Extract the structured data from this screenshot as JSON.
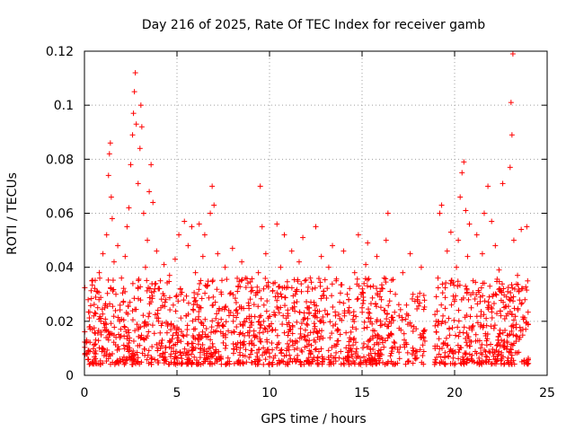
{
  "chart_data": {
    "type": "scatter",
    "title": "Day 216 of 2025, Rate Of TEC Index for receiver gamb",
    "xlabel": "GPS time / hours",
    "ylabel": "ROTI / TECUs",
    "xlim": [
      0,
      25
    ],
    "ylim": [
      0,
      0.12
    ],
    "x_ticks": [
      0,
      5,
      10,
      15,
      20,
      25
    ],
    "x_tick_labels": [
      "0",
      "5",
      "10",
      "15",
      "20",
      "25"
    ],
    "y_ticks": [
      0,
      0.02,
      0.04,
      0.06,
      0.08,
      0.1,
      0.12
    ],
    "y_tick_labels": [
      "0",
      "0.02",
      "0.04",
      "0.06",
      "0.08",
      "0.1",
      "0.12"
    ],
    "grid": true,
    "marker": "+",
    "series_color": "#ff0000",
    "series": [
      {
        "name": "ROTI",
        "points": [
          [
            0.1,
            0.012
          ],
          [
            0.2,
            0.028
          ],
          [
            0.3,
            0.018
          ],
          [
            0.4,
            0.035
          ],
          [
            0.5,
            0.022
          ],
          [
            0.6,
            0.009
          ],
          [
            0.7,
            0.031
          ],
          [
            0.8,
            0.038
          ],
          [
            0.9,
            0.015
          ],
          [
            1.0,
            0.045
          ],
          [
            1.1,
            0.025
          ],
          [
            1.2,
            0.052
          ],
          [
            1.3,
            0.074
          ],
          [
            1.35,
            0.082
          ],
          [
            1.4,
            0.086
          ],
          [
            1.45,
            0.066
          ],
          [
            1.5,
            0.058
          ],
          [
            1.6,
            0.042
          ],
          [
            1.7,
            0.03
          ],
          [
            1.8,
            0.048
          ],
          [
            1.9,
            0.02
          ],
          [
            2.0,
            0.036
          ],
          [
            2.1,
            0.027
          ],
          [
            2.2,
            0.044
          ],
          [
            2.3,
            0.055
          ],
          [
            2.4,
            0.062
          ],
          [
            2.5,
            0.078
          ],
          [
            2.6,
            0.089
          ],
          [
            2.65,
            0.097
          ],
          [
            2.7,
            0.105
          ],
          [
            2.75,
            0.112
          ],
          [
            2.8,
            0.093
          ],
          [
            2.9,
            0.071
          ],
          [
            3.0,
            0.084
          ],
          [
            3.05,
            0.1
          ],
          [
            3.1,
            0.092
          ],
          [
            3.2,
            0.06
          ],
          [
            3.3,
            0.04
          ],
          [
            3.4,
            0.05
          ],
          [
            3.5,
            0.068
          ],
          [
            3.6,
            0.078
          ],
          [
            3.7,
            0.064
          ],
          [
            3.8,
            0.032
          ],
          [
            3.9,
            0.046
          ],
          [
            4.0,
            0.02
          ],
          [
            4.1,
            0.035
          ],
          [
            4.2,
            0.013
          ],
          [
            4.3,
            0.041
          ],
          [
            4.4,
            0.028
          ],
          [
            4.5,
            0.019
          ],
          [
            4.6,
            0.037
          ],
          [
            4.7,
            0.01
          ],
          [
            4.8,
            0.026
          ],
          [
            4.9,
            0.043
          ],
          [
            5.0,
            0.017
          ],
          [
            5.1,
            0.052
          ],
          [
            5.2,
            0.03
          ],
          [
            5.4,
            0.057
          ],
          [
            5.5,
            0.022
          ],
          [
            5.6,
            0.048
          ],
          [
            5.8,
            0.055
          ],
          [
            5.9,
            0.014
          ],
          [
            6.0,
            0.038
          ],
          [
            6.2,
            0.056
          ],
          [
            6.3,
            0.025
          ],
          [
            6.4,
            0.044
          ],
          [
            6.5,
            0.052
          ],
          [
            6.6,
            0.033
          ],
          [
            6.8,
            0.06
          ],
          [
            6.9,
            0.07
          ],
          [
            7.0,
            0.063
          ],
          [
            7.1,
            0.021
          ],
          [
            7.2,
            0.045
          ],
          [
            7.4,
            0.03
          ],
          [
            7.5,
            0.012
          ],
          [
            7.6,
            0.04
          ],
          [
            7.8,
            0.024
          ],
          [
            8.0,
            0.047
          ],
          [
            8.1,
            0.016
          ],
          [
            8.3,
            0.033
          ],
          [
            8.5,
            0.042
          ],
          [
            8.6,
            0.011
          ],
          [
            8.7,
            0.036
          ],
          [
            8.9,
            0.021
          ],
          [
            9.0,
            0.031
          ],
          [
            9.2,
            0.014
          ],
          [
            9.4,
            0.038
          ],
          [
            9.5,
            0.07
          ],
          [
            9.6,
            0.055
          ],
          [
            9.7,
            0.026
          ],
          [
            9.8,
            0.045
          ],
          [
            10.0,
            0.018
          ],
          [
            10.2,
            0.034
          ],
          [
            10.4,
            0.056
          ],
          [
            10.5,
            0.012
          ],
          [
            10.6,
            0.04
          ],
          [
            10.8,
            0.052
          ],
          [
            11.0,
            0.022
          ],
          [
            11.2,
            0.046
          ],
          [
            11.4,
            0.03
          ],
          [
            11.5,
            0.01
          ],
          [
            11.6,
            0.042
          ],
          [
            11.8,
            0.051
          ],
          [
            12.0,
            0.019
          ],
          [
            12.2,
            0.036
          ],
          [
            12.4,
            0.027
          ],
          [
            12.5,
            0.055
          ],
          [
            12.6,
            0.014
          ],
          [
            12.8,
            0.044
          ],
          [
            13.0,
            0.024
          ],
          [
            13.2,
            0.04
          ],
          [
            13.4,
            0.048
          ],
          [
            13.5,
            0.011
          ],
          [
            13.6,
            0.035
          ],
          [
            13.8,
            0.021
          ],
          [
            14.0,
            0.046
          ],
          [
            14.2,
            0.03
          ],
          [
            14.4,
            0.016
          ],
          [
            14.6,
            0.038
          ],
          [
            14.8,
            0.052
          ],
          [
            15.0,
            0.025
          ],
          [
            15.2,
            0.041
          ],
          [
            15.3,
            0.049
          ],
          [
            15.4,
            0.013
          ],
          [
            15.6,
            0.033
          ],
          [
            15.8,
            0.044
          ],
          [
            16.0,
            0.02
          ],
          [
            16.2,
            0.036
          ],
          [
            16.3,
            0.05
          ],
          [
            16.4,
            0.06
          ],
          [
            16.6,
            0.015
          ],
          [
            16.8,
            0.03
          ],
          [
            17.0,
            0.022
          ],
          [
            17.2,
            0.038
          ],
          [
            17.4,
            0.026
          ],
          [
            17.6,
            0.045
          ],
          [
            17.8,
            0.018
          ],
          [
            18.0,
            0.029
          ],
          [
            18.2,
            0.04
          ],
          [
            19.0,
            0.02
          ],
          [
            19.1,
            0.036
          ],
          [
            19.2,
            0.06
          ],
          [
            19.3,
            0.063
          ],
          [
            19.4,
            0.012
          ],
          [
            19.6,
            0.046
          ],
          [
            19.8,
            0.053
          ],
          [
            20.0,
            0.028
          ],
          [
            20.1,
            0.04
          ],
          [
            20.2,
            0.05
          ],
          [
            20.3,
            0.066
          ],
          [
            20.4,
            0.075
          ],
          [
            20.5,
            0.079
          ],
          [
            20.6,
            0.061
          ],
          [
            20.7,
            0.044
          ],
          [
            20.8,
            0.056
          ],
          [
            20.9,
            0.025
          ],
          [
            21.0,
            0.035
          ],
          [
            21.2,
            0.052
          ],
          [
            21.4,
            0.018
          ],
          [
            21.5,
            0.045
          ],
          [
            21.6,
            0.06
          ],
          [
            21.8,
            0.07
          ],
          [
            22.0,
            0.057
          ],
          [
            22.1,
            0.03
          ],
          [
            22.2,
            0.048
          ],
          [
            22.4,
            0.039
          ],
          [
            22.6,
            0.071
          ],
          [
            22.8,
            0.022
          ],
          [
            23.0,
            0.077
          ],
          [
            23.05,
            0.101
          ],
          [
            23.1,
            0.089
          ],
          [
            23.15,
            0.119
          ],
          [
            23.2,
            0.05
          ],
          [
            23.4,
            0.037
          ],
          [
            23.6,
            0.054
          ],
          [
            23.8,
            0.028
          ],
          [
            23.9,
            0.055
          ]
        ]
      }
    ]
  }
}
